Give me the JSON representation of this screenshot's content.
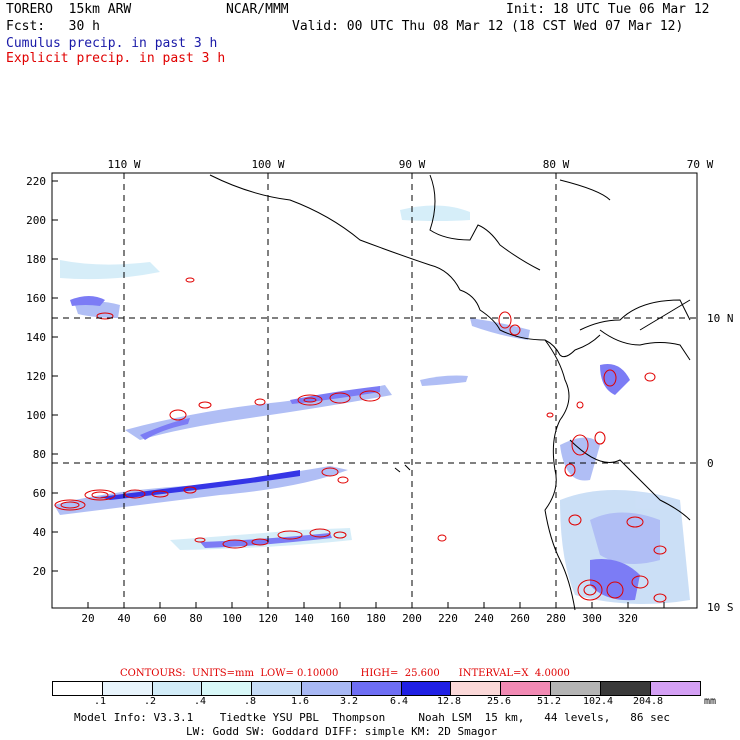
{
  "header": {
    "model": "TORERO  15km ARW",
    "org": "NCAR/MMM",
    "init": "Init: 18 UTC Tue 06 Mar 12",
    "fcst": "Fcst:   30 h",
    "valid": "Valid: 00 UTC Thu 08 Mar 12 (18 CST Wed 07 Mar 12)",
    "cumulus": "Cumulus precip. in past 3 h",
    "explicit": "Explicit precip. in past 3 h"
  },
  "axes": {
    "left_ticks": [
      "220",
      "200",
      "180",
      "160",
      "140",
      "120",
      "100",
      "80",
      "60",
      "40",
      "20"
    ],
    "bottom_ticks": [
      "20",
      "40",
      "60",
      "80",
      "100",
      "120",
      "140",
      "160",
      "180",
      "200",
      "220",
      "240",
      "260",
      "280",
      "300",
      "320"
    ],
    "top_ticks": [
      "110 W",
      "100 W",
      "90 W",
      "80 W",
      "70 W"
    ],
    "right_ticks": [
      "10 N",
      "0",
      "10 S"
    ]
  },
  "contour_info": "CONTOURS:  UNITS=mm  LOW= 0.10000       HIGH=  25.600      INTERVAL=X  4.0000",
  "legend": {
    "labels": [
      ".1",
      ".2",
      ".4",
      ".8",
      "1.6",
      "3.2",
      "6.4",
      "12.8",
      "25.6",
      "51.2",
      "102.4",
      "204.8"
    ],
    "unit": "mm",
    "colors": [
      "#ffffff",
      "#e8f4fc",
      "#d2ecf8",
      "#d8f8f8",
      "#c6dcf6",
      "#a8b8f4",
      "#6e6ef4",
      "#2020e4",
      "#fbd8d8",
      "#f28ab4",
      "#b4b4b4",
      "#3a3a3a",
      "#d4a0f4"
    ]
  },
  "footer": {
    "line1": "Model Info: V3.3.1    Tiedtke YSU PBL  Thompson     Noah LSM  15 km,   44 levels,   86 sec",
    "line2": "LW: Godd SW: Goddard DIFF: simple KM: 2D Smagor"
  }
}
